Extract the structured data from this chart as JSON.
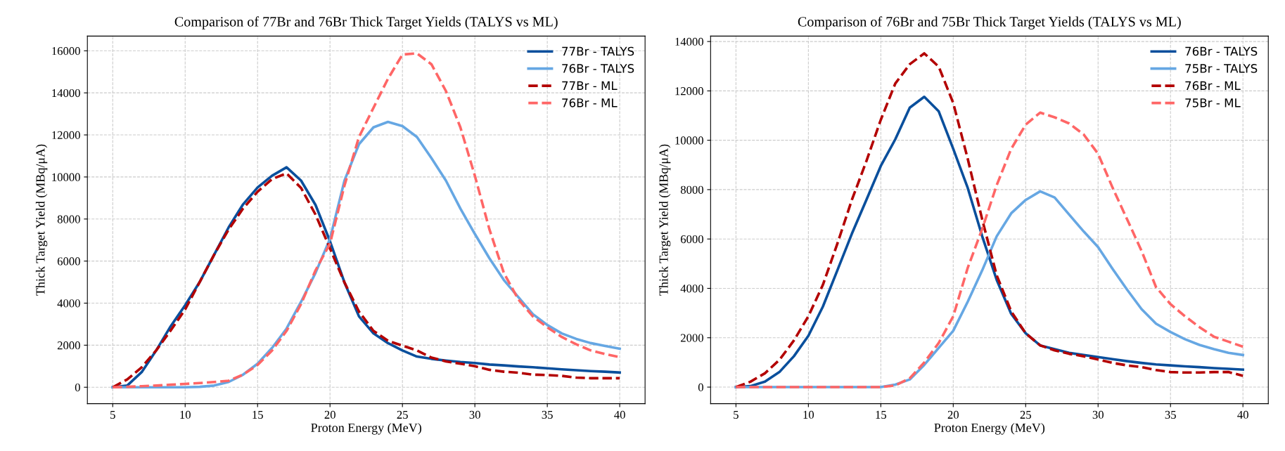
{
  "chart_data": [
    {
      "type": "line",
      "title": "Comparison of 77Br and 76Br Thick Target Yields (TALYS vs ML)",
      "xlabel": "Proton Energy (MeV)",
      "ylabel": "Thick Target Yield (MBq/μA)",
      "x": [
        5,
        6,
        7,
        8,
        9,
        10,
        11,
        12,
        13,
        14,
        15,
        16,
        17,
        18,
        19,
        20,
        21,
        22,
        23,
        24,
        25,
        26,
        27,
        28,
        29,
        30,
        31,
        32,
        33,
        34,
        35,
        36,
        37,
        38,
        39,
        40
      ],
      "xlim": [
        3.25,
        41.75
      ],
      "xticks": [
        5,
        10,
        15,
        20,
        25,
        30,
        35,
        40
      ],
      "ylim": [
        -780,
        16700
      ],
      "yticks": [
        0,
        2000,
        4000,
        6000,
        8000,
        10000,
        12000,
        14000,
        16000
      ],
      "grid": true,
      "legend": "top right",
      "series": [
        {
          "name": "77Br - TALYS",
          "color": "#0a4f9c",
          "line_style": "solid",
          "values": [
            0,
            80,
            720,
            1750,
            2900,
            3900,
            5000,
            6300,
            7600,
            8700,
            9500,
            10060,
            10460,
            9830,
            8670,
            6940,
            4980,
            3370,
            2560,
            2100,
            1750,
            1460,
            1350,
            1270,
            1200,
            1150,
            1080,
            1040,
            990,
            950,
            900,
            850,
            810,
            770,
            740,
            700
          ]
        },
        {
          "name": "76Br - TALYS",
          "color": "#66a7e3",
          "line_style": "solid",
          "values": [
            0,
            0,
            0,
            0,
            0,
            0,
            20,
            80,
            250,
            600,
            1120,
            1870,
            2790,
            4060,
            5440,
            7060,
            9830,
            11560,
            12360,
            12620,
            12420,
            11900,
            10900,
            9830,
            8500,
            7290,
            6140,
            5100,
            4290,
            3480,
            2960,
            2560,
            2300,
            2100,
            1960,
            1830
          ]
        },
        {
          "name": "77Br - ML",
          "color": "#b30000",
          "line_style": "dashed",
          "values": [
            0,
            370,
            950,
            1750,
            2700,
            3700,
            5000,
            6300,
            7500,
            8500,
            9300,
            9900,
            10170,
            9480,
            8210,
            6600,
            4980,
            3600,
            2680,
            2210,
            1980,
            1750,
            1410,
            1230,
            1120,
            1000,
            830,
            740,
            690,
            600,
            580,
            540,
            460,
            430,
            430,
            430
          ]
        },
        {
          "name": "76Br - ML",
          "color": "#ff6666",
          "line_style": "dashed",
          "values": [
            0,
            20,
            50,
            80,
            120,
            160,
            200,
            250,
            310,
            600,
            1060,
            1750,
            2680,
            3950,
            5560,
            6830,
            9600,
            11900,
            13290,
            14670,
            15820,
            15880,
            15360,
            14090,
            12360,
            10060,
            7520,
            5440,
            4180,
            3370,
            2850,
            2390,
            2040,
            1750,
            1580,
            1430
          ]
        }
      ]
    },
    {
      "type": "line",
      "title": "Comparison of 76Br and 75Br Thick Target Yields (TALYS vs ML)",
      "xlabel": "Proton Energy (MeV)",
      "ylabel": "Thick Target Yield (MBq/μA)",
      "x": [
        5,
        6,
        7,
        8,
        9,
        10,
        11,
        12,
        13,
        14,
        15,
        16,
        17,
        18,
        19,
        20,
        21,
        22,
        23,
        24,
        25,
        26,
        27,
        28,
        29,
        30,
        31,
        32,
        33,
        34,
        35,
        36,
        37,
        38,
        39,
        40
      ],
      "xlim": [
        3.25,
        41.75
      ],
      "xticks": [
        5,
        10,
        15,
        20,
        25,
        30,
        35,
        40
      ],
      "ylim": [
        -670,
        14220
      ],
      "yticks": [
        0,
        2000,
        4000,
        6000,
        8000,
        10000,
        12000,
        14000
      ],
      "grid": true,
      "legend": "top right",
      "series": [
        {
          "name": "76Br - TALYS",
          "color": "#0a4f9c",
          "line_style": "solid",
          "values": [
            0,
            40,
            220,
            610,
            1250,
            2080,
            3260,
            4730,
            6210,
            7580,
            8960,
            10040,
            11320,
            11760,
            11170,
            9650,
            8070,
            6110,
            4340,
            2970,
            2180,
            1690,
            1540,
            1390,
            1300,
            1220,
            1130,
            1050,
            980,
            920,
            880,
            840,
            810,
            770,
            740,
            710
          ]
        },
        {
          "name": "75Br - TALYS",
          "color": "#66a7e3",
          "line_style": "solid",
          "values": [
            0,
            0,
            0,
            0,
            0,
            0,
            0,
            0,
            0,
            0,
            0,
            100,
            310,
            900,
            1590,
            2280,
            3460,
            4730,
            6110,
            7040,
            7580,
            7930,
            7680,
            6990,
            6310,
            5670,
            4790,
            3950,
            3160,
            2570,
            2230,
            1940,
            1710,
            1540,
            1390,
            1300
          ]
        },
        {
          "name": "76Br - ML",
          "color": "#b30000",
          "line_style": "dashed",
          "values": [
            0,
            220,
            560,
            1100,
            1890,
            2870,
            4140,
            5810,
            7580,
            9150,
            10830,
            12300,
            13080,
            13520,
            12980,
            11510,
            9250,
            6790,
            4530,
            3070,
            2180,
            1690,
            1490,
            1350,
            1250,
            1120,
            980,
            880,
            810,
            690,
            610,
            590,
            590,
            610,
            610,
            460
          ]
        },
        {
          "name": "75Br - ML",
          "color": "#ff6666",
          "line_style": "dashed",
          "values": [
            0,
            0,
            0,
            0,
            0,
            0,
            0,
            0,
            0,
            0,
            0,
            70,
            360,
            1000,
            1790,
            2870,
            4830,
            6410,
            8180,
            9650,
            10630,
            11120,
            10930,
            10680,
            10240,
            9450,
            8080,
            6800,
            5520,
            4050,
            3360,
            2870,
            2430,
            2040,
            1840,
            1640
          ]
        }
      ]
    }
  ]
}
